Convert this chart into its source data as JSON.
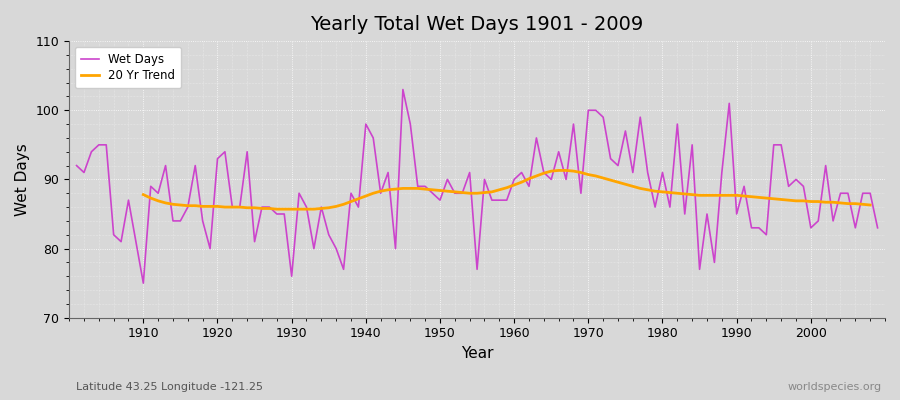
{
  "title": "Yearly Total Wet Days 1901 - 2009",
  "xlabel": "Year",
  "ylabel": "Wet Days",
  "ylim": [
    70,
    110
  ],
  "xlim": [
    1900,
    2010
  ],
  "yticks": [
    70,
    80,
    90,
    100,
    110
  ],
  "xticks": [
    1910,
    1920,
    1930,
    1940,
    1950,
    1960,
    1970,
    1980,
    1990,
    2000
  ],
  "wet_days_color": "#cc44cc",
  "trend_color": "#FFA500",
  "bg_color": "#d8d8d8",
  "plot_bg_color": "#d8d8d8",
  "grid_color": "#ffffff",
  "subtitle_left": "Latitude 43.25 Longitude -121.25",
  "subtitle_right": "worldspecies.org",
  "years": [
    1901,
    1902,
    1903,
    1904,
    1905,
    1906,
    1907,
    1908,
    1909,
    1910,
    1911,
    1912,
    1913,
    1914,
    1915,
    1916,
    1917,
    1918,
    1919,
    1920,
    1921,
    1922,
    1923,
    1924,
    1925,
    1926,
    1927,
    1928,
    1929,
    1930,
    1931,
    1932,
    1933,
    1934,
    1935,
    1936,
    1937,
    1938,
    1939,
    1940,
    1941,
    1942,
    1943,
    1944,
    1945,
    1946,
    1947,
    1948,
    1949,
    1950,
    1951,
    1952,
    1953,
    1954,
    1955,
    1956,
    1957,
    1958,
    1959,
    1960,
    1961,
    1962,
    1963,
    1964,
    1965,
    1966,
    1967,
    1968,
    1969,
    1970,
    1971,
    1972,
    1973,
    1974,
    1975,
    1976,
    1977,
    1978,
    1979,
    1980,
    1981,
    1982,
    1983,
    1984,
    1985,
    1986,
    1987,
    1988,
    1989,
    1990,
    1991,
    1992,
    1993,
    1994,
    1995,
    1996,
    1997,
    1998,
    1999,
    2000,
    2001,
    2002,
    2003,
    2004,
    2005,
    2006,
    2007,
    2008,
    2009
  ],
  "wet_days": [
    92,
    91,
    94,
    95,
    95,
    82,
    81,
    87,
    81,
    75,
    89,
    88,
    92,
    84,
    84,
    86,
    92,
    84,
    80,
    93,
    94,
    86,
    86,
    94,
    81,
    86,
    86,
    85,
    85,
    76,
    88,
    86,
    80,
    86,
    82,
    80,
    77,
    88,
    86,
    98,
    96,
    88,
    91,
    80,
    103,
    98,
    89,
    89,
    88,
    87,
    90,
    88,
    88,
    91,
    77,
    90,
    87,
    87,
    87,
    90,
    91,
    89,
    96,
    91,
    90,
    94,
    90,
    98,
    88,
    100,
    100,
    99,
    93,
    92,
    97,
    91,
    99,
    91,
    86,
    91,
    86,
    98,
    85,
    95,
    77,
    85,
    78,
    91,
    101,
    85,
    89,
    83,
    83,
    82,
    95,
    95,
    89,
    90,
    89,
    83,
    84,
    92,
    84,
    88,
    88,
    83,
    88,
    88,
    83
  ],
  "trend_start_year": 1910,
  "trend_values": [
    87.8,
    87.3,
    86.9,
    86.6,
    86.4,
    86.3,
    86.2,
    86.2,
    86.1,
    86.1,
    86.1,
    86.0,
    86.0,
    86.0,
    85.9,
    85.9,
    85.8,
    85.8,
    85.7,
    85.7,
    85.7,
    85.7,
    85.7,
    85.7,
    85.8,
    85.9,
    86.1,
    86.4,
    86.8,
    87.2,
    87.6,
    88.0,
    88.3,
    88.5,
    88.6,
    88.7,
    88.7,
    88.7,
    88.6,
    88.5,
    88.4,
    88.3,
    88.2,
    88.1,
    88.0,
    88.0,
    88.1,
    88.2,
    88.5,
    88.8,
    89.2,
    89.6,
    90.1,
    90.5,
    90.9,
    91.2,
    91.3,
    91.3,
    91.2,
    91.0,
    90.7,
    90.5,
    90.2,
    89.9,
    89.6,
    89.3,
    89.0,
    88.7,
    88.5,
    88.3,
    88.2,
    88.1,
    88.0,
    87.9,
    87.8,
    87.7,
    87.7,
    87.7,
    87.7,
    87.7,
    87.7,
    87.6,
    87.5,
    87.4,
    87.3,
    87.2,
    87.1,
    87.0,
    86.9,
    86.9,
    86.8,
    86.8,
    86.7,
    86.7,
    86.6,
    86.5,
    86.5,
    86.4,
    86.3
  ]
}
